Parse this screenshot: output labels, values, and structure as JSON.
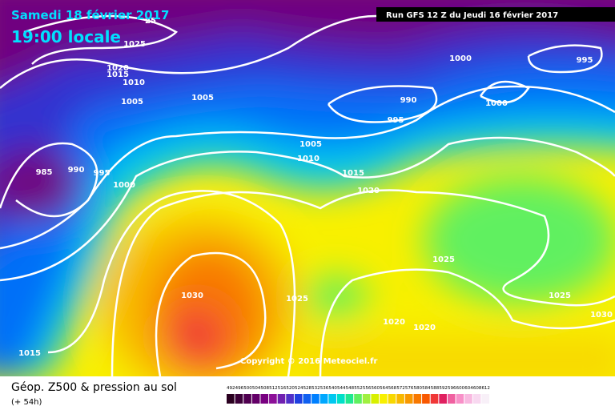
{
  "header": {
    "date": "Samedi 18 février 2017",
    "time": "19:00 locale",
    "run": "Run GFS 12 Z du Jeudi 16 février 2017"
  },
  "copyright": "Copyright © 2016 Meteociel.fr",
  "footer": {
    "title": "Géop. Z500 & pression au sol",
    "lead": "(+ 54h)"
  },
  "isobar_labels": [
    25,
    1025,
    1020,
    1015,
    1010,
    1005,
    1005,
    985,
    990,
    995,
    1000,
    1000,
    995,
    990,
    995,
    1000,
    1005,
    1010,
    1015,
    1020,
    1025,
    1030,
    1025,
    1025,
    1030,
    1020,
    1020,
    1015
  ],
  "legend": {
    "levels": [
      492,
      496,
      500,
      504,
      508,
      512,
      516,
      520,
      524,
      528,
      532,
      536,
      540,
      544,
      548,
      552,
      556,
      560,
      564,
      568,
      572,
      576,
      580,
      584,
      588,
      592,
      596,
      600,
      604,
      608,
      612
    ],
    "colors": [
      "#2a0020",
      "#3c0038",
      "#500050",
      "#640068",
      "#780080",
      "#8c1098",
      "#7020b0",
      "#5030c8",
      "#2040e0",
      "#1060f0",
      "#0080ff",
      "#00a8ff",
      "#00c8f0",
      "#00e0c8",
      "#20e890",
      "#60f060",
      "#a0f040",
      "#d8f000",
      "#f8f000",
      "#f8d800",
      "#f8b800",
      "#f89800",
      "#f87800",
      "#f85800",
      "#f03838",
      "#e02060",
      "#f060a0",
      "#f890c8",
      "#f8b8e0",
      "#f8d8f0",
      "#f8f0f8"
    ]
  }
}
